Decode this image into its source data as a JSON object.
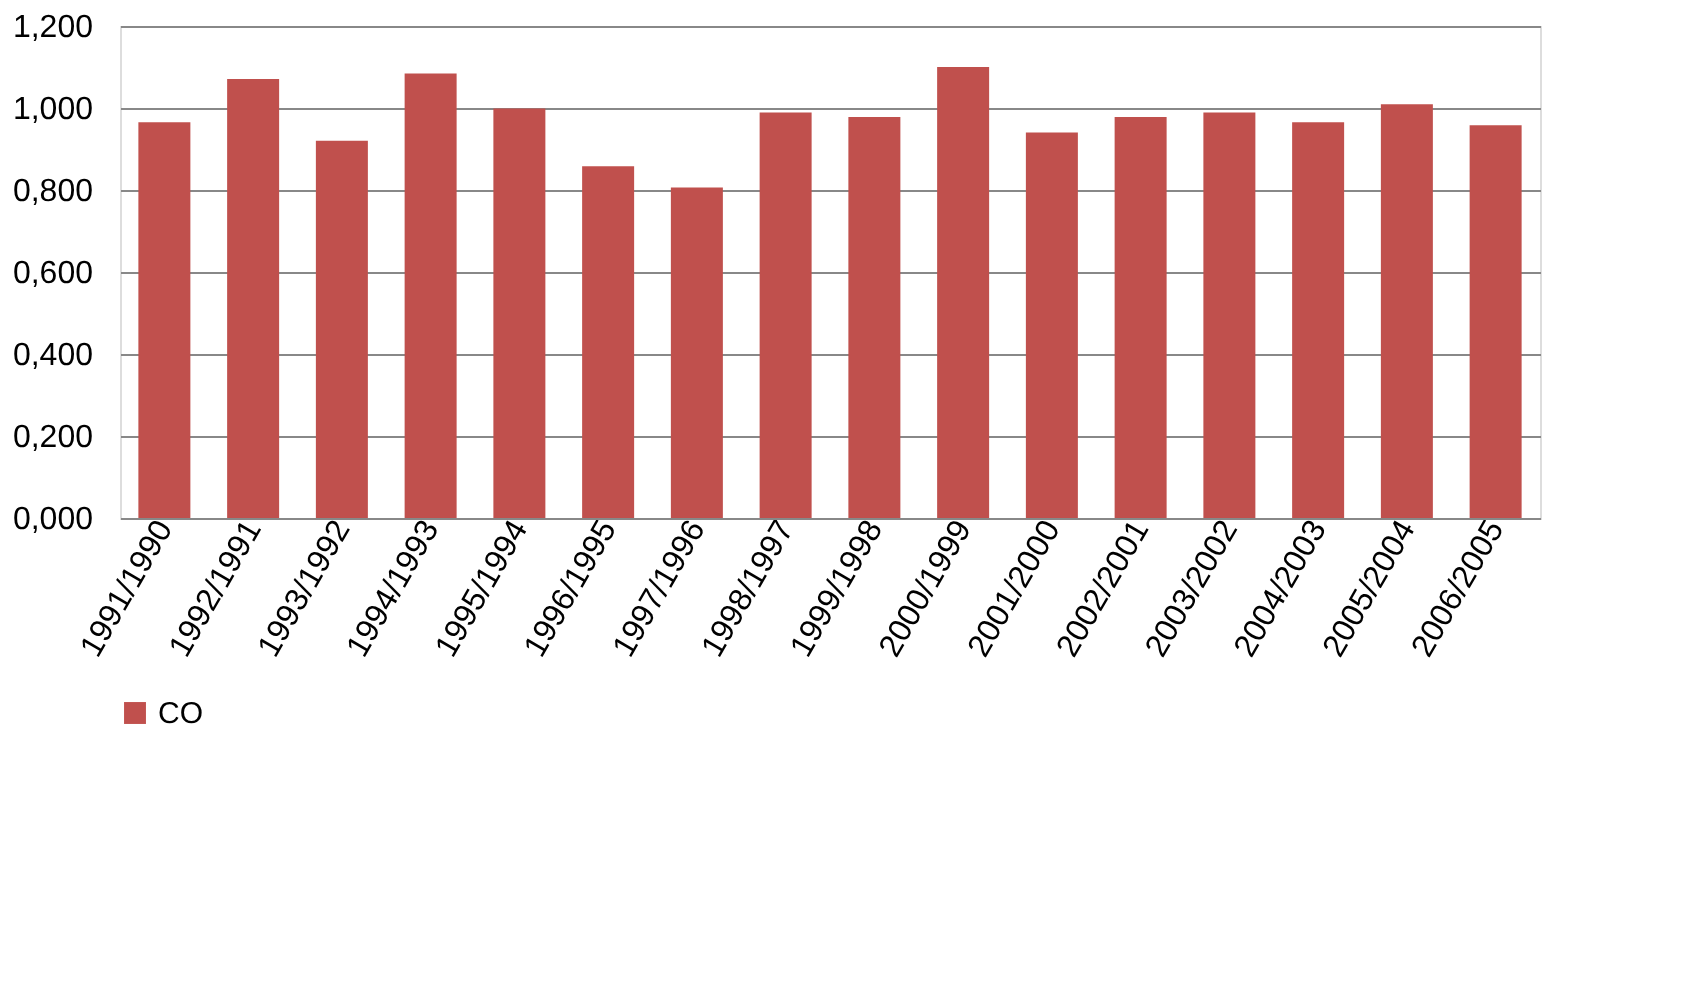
{
  "chart_data": {
    "type": "bar",
    "categories": [
      "1991/1990",
      "1992/1991",
      "1993/1992",
      "1994/1993",
      "1995/1994",
      "1996/1995",
      "1997/1996",
      "1998/1997",
      "1999/1998",
      "2000/1999",
      "2001/2000",
      "2002/2001",
      "2003/2002",
      "2004/2003",
      "2005/2004",
      "2006/2005"
    ],
    "series": [
      {
        "name": "CO",
        "color": "#c0504d",
        "values": [
          0.965,
          1.071,
          0.92,
          1.084,
          0.999,
          0.858,
          0.806,
          0.989,
          0.978,
          1.1,
          0.94,
          0.978,
          0.989,
          0.965,
          1.009,
          0.958
        ]
      }
    ],
    "ylim": [
      0,
      1.2
    ],
    "yticks": [
      {
        "value": 0,
        "label": "0,000"
      },
      {
        "value": 0.2,
        "label": "0,200"
      },
      {
        "value": 0.4,
        "label": "0,400"
      },
      {
        "value": 0.6,
        "label": "0,600"
      },
      {
        "value": 0.8,
        "label": "0,800"
      },
      {
        "value": 1.0,
        "label": "1,000"
      },
      {
        "value": 1.2,
        "label": "1,200"
      }
    ],
    "grid": "y",
    "legend": "bottom"
  }
}
